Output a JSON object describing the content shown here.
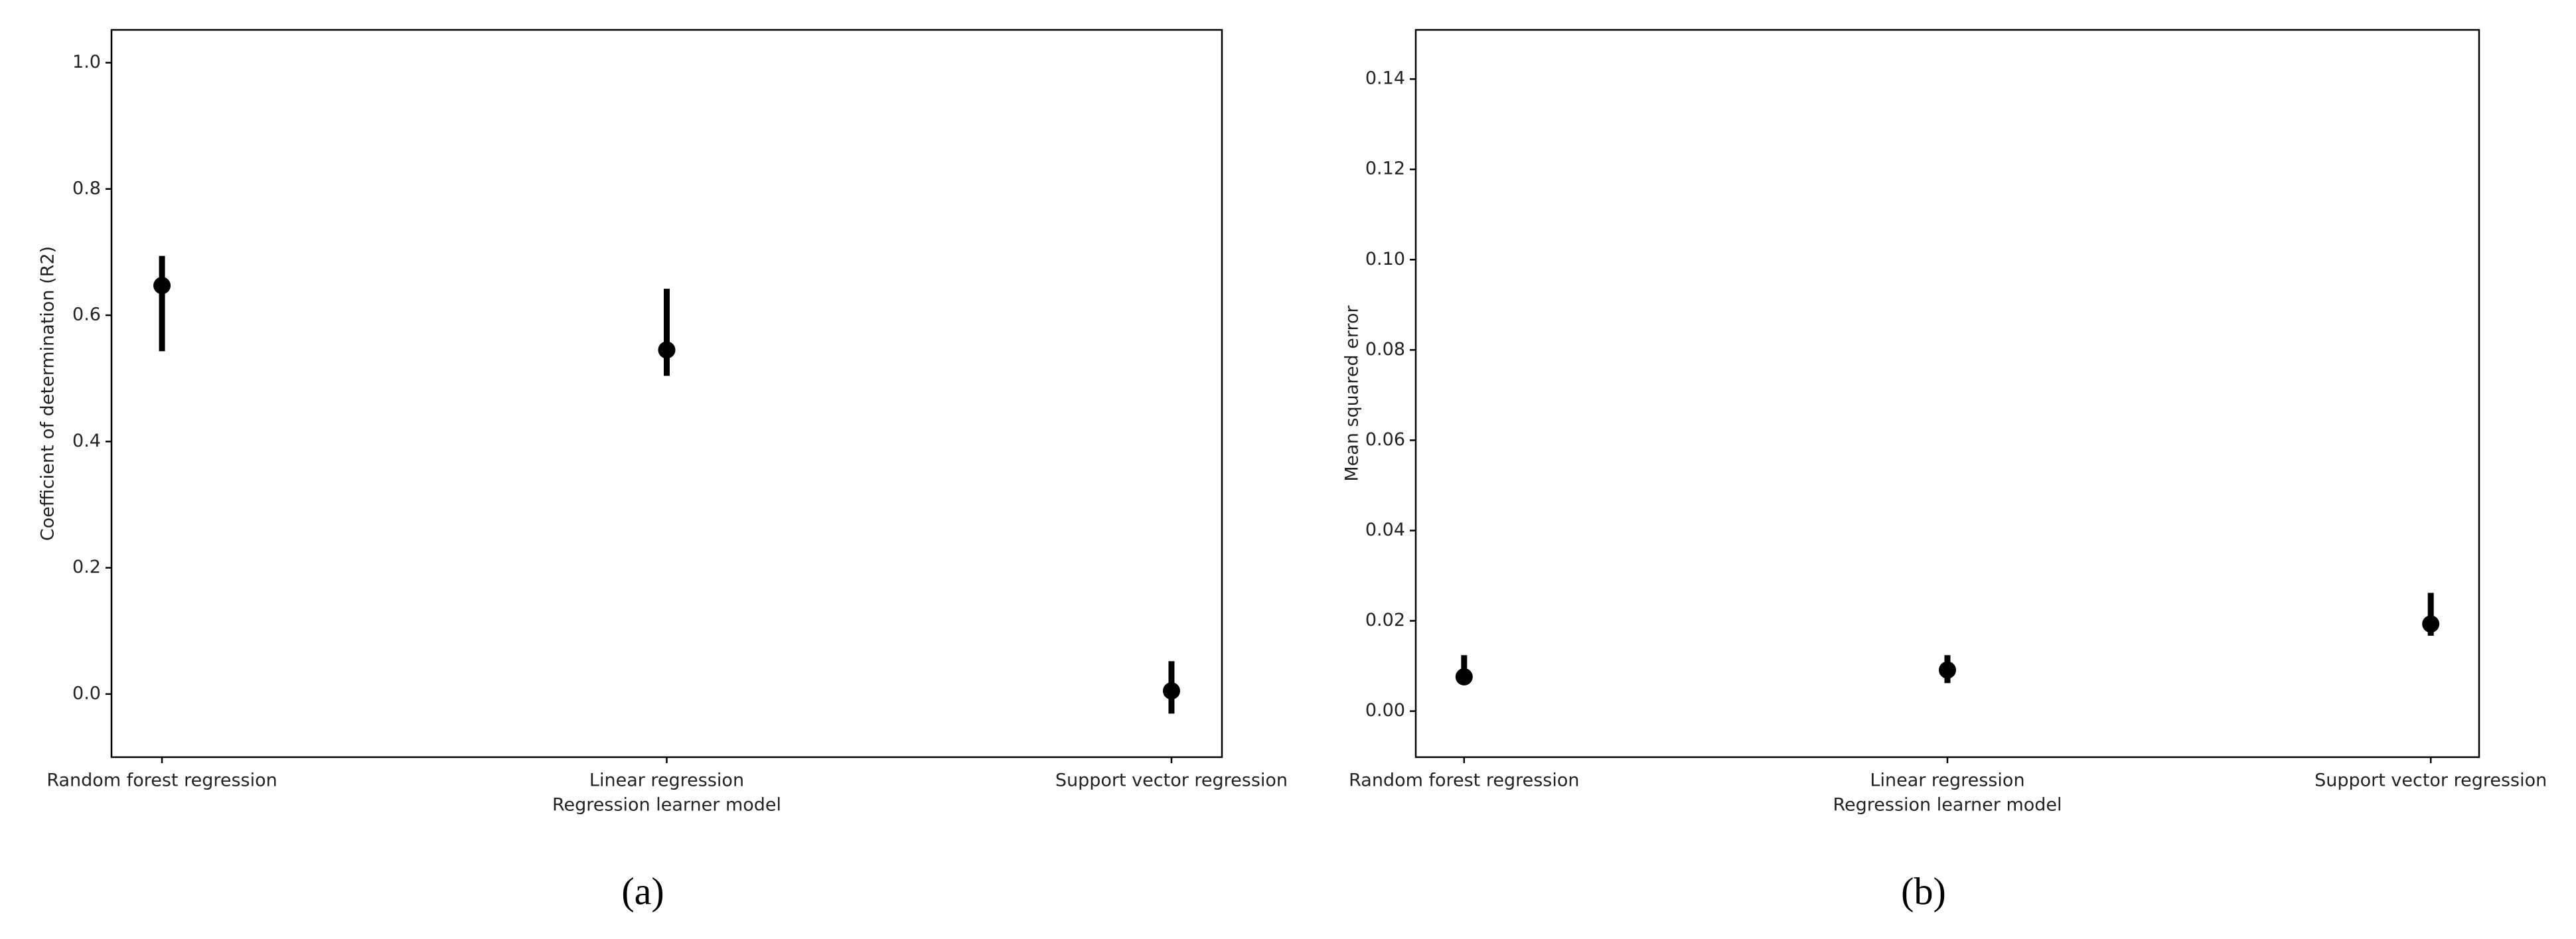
{
  "chart_data": [
    {
      "type": "pointplot",
      "caption": "(a)",
      "x_label": "Regression learner model",
      "y_label": "Coefficient of determination (R2)",
      "categories": [
        "Random forest regression",
        "Linear regression",
        "Support vector regression"
      ],
      "values": [
        0.647,
        0.545,
        0.005
      ],
      "error_low": [
        0.543,
        0.504,
        -0.031
      ],
      "error_high": [
        0.694,
        0.642,
        0.052
      ],
      "color": "#000000",
      "ylim": [
        -0.1,
        1.052
      ],
      "yticks": [
        {
          "value": 0,
          "label": "0.0"
        },
        0.2,
        0.4,
        0.6,
        0.8,
        {
          "value": 1,
          "label": "1.0"
        }
      ]
    },
    {
      "type": "pointplot",
      "caption": "(b)",
      "x_label": "Regression learner model",
      "y_label": "Mean squared error",
      "categories": [
        "Random forest regression",
        "Linear regression",
        "Support vector regression"
      ],
      "values": [
        0.0076,
        0.0091,
        0.0193
      ],
      "error_low": [
        0.0058,
        0.0062,
        0.0167
      ],
      "error_high": [
        0.0124,
        0.0124,
        0.0262
      ],
      "color": "#000000",
      "ylim": [
        -0.0102,
        0.1509
      ],
      "yticks": [
        {
          "value": 0,
          "label": "0.00"
        },
        0.02,
        0.04,
        0.06,
        0.08,
        {
          "value": 0.1,
          "label": "0.10"
        },
        0.12,
        0.14
      ]
    }
  ]
}
